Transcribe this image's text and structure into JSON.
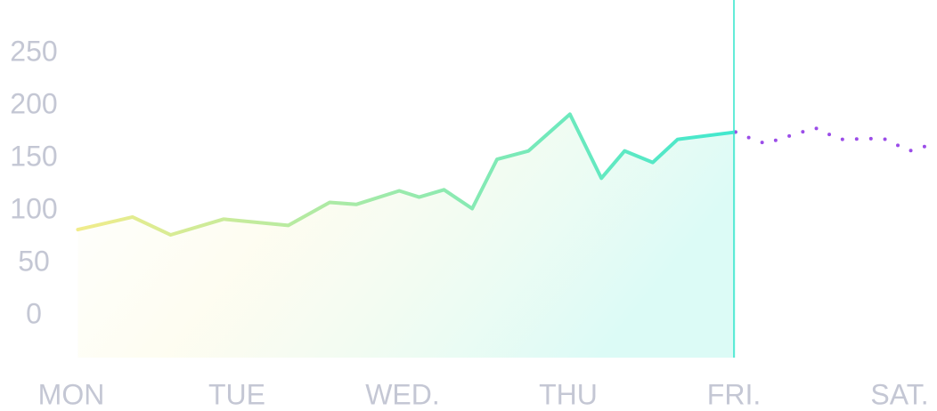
{
  "chart_data": {
    "type": "line",
    "xlim": [
      0,
      5.25
    ],
    "ylim": [
      -40,
      300
    ],
    "xticks": [
      {
        "value": 0,
        "label": "MON"
      },
      {
        "value": 1,
        "label": "TUE"
      },
      {
        "value": 2,
        "label": "WED."
      },
      {
        "value": 3,
        "label": "THU"
      },
      {
        "value": 4,
        "label": "FRI."
      },
      {
        "value": 5,
        "label": "SAT."
      }
    ],
    "yticks": [
      0,
      50,
      100,
      150,
      200,
      250
    ],
    "marker_x": 4,
    "series": [
      {
        "color": "#3ee8cf",
        "start_color": "#f3ec8a",
        "style": "solid",
        "fill": true,
        "x": [
          0.04,
          0.37,
          0.6,
          0.92,
          1.31,
          1.56,
          1.72,
          1.98,
          2.1,
          2.25,
          2.42,
          2.57,
          2.76,
          3.01,
          3.2,
          3.34,
          3.51,
          3.66,
          4.01
        ],
        "values": [
          82,
          94,
          77,
          92,
          86,
          108,
          106,
          119,
          113,
          120,
          102,
          149,
          157,
          192,
          131,
          157,
          146,
          168,
          175
        ]
      },
      {
        "color": "#9b4de8",
        "style": "dotted",
        "fill": false,
        "x": [
          4.01,
          4.1,
          4.19,
          4.29,
          4.49,
          4.64,
          4.9,
          5.06,
          5.19
        ],
        "values": [
          175,
          169,
          164,
          169,
          179,
          168,
          169,
          157,
          163
        ]
      }
    ]
  }
}
